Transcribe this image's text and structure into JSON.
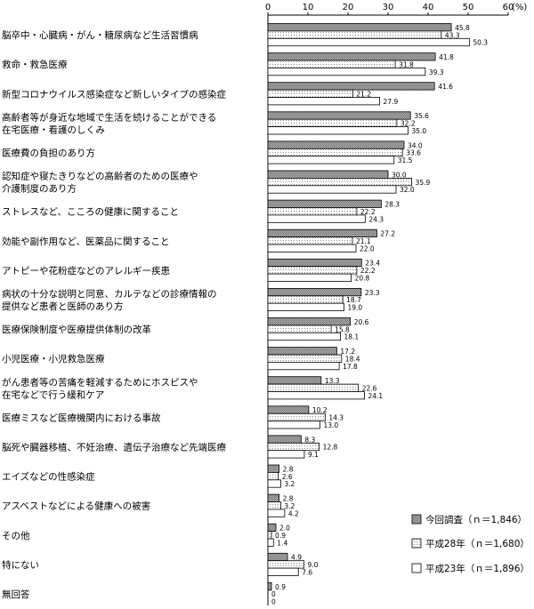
{
  "chart_data": {
    "type": "bar",
    "orientation": "horizontal",
    "unit": "(%)",
    "xlim": [
      0,
      60
    ],
    "ticks": [
      0,
      10,
      20,
      30,
      40,
      50,
      60
    ],
    "categories": [
      [
        "脳卒中・心臓病・がん・糖尿病など生活習慣病"
      ],
      [
        "救命・救急医療"
      ],
      [
        "新型コロナウイルス感染症など新しいタイプの感染症"
      ],
      [
        "高齢者等が身近な地域で生活を続けることができる",
        "在宅医療・看護のしくみ"
      ],
      [
        "医療費の負担のあり方"
      ],
      [
        "認知症や寝たきりなどの高齢者のための医療や",
        "介護制度のあり方"
      ],
      [
        "ストレスなど、こころの健康に関すること"
      ],
      [
        "効能や副作用など、医薬品に関すること"
      ],
      [
        "アトピーや花粉症などのアレルギー疾患"
      ],
      [
        "病状の十分な説明と同意、カルテなどの診療情報の",
        "提供など患者と医師のあり方"
      ],
      [
        "医療保険制度や医療提供体制の改革"
      ],
      [
        "小児医療・小児救急医療"
      ],
      [
        "がん患者等の苦痛を軽減するためにホスピスや",
        "在宅などで行う緩和ケア"
      ],
      [
        "医療ミスなど医療機関内における事故"
      ],
      [
        "脳死や臓器移植、不妊治療、遺伝子治療など先端医療"
      ],
      [
        "エイズなどの性感染症"
      ],
      [
        "アスベストなどによる健康への被害"
      ],
      [
        "その他"
      ],
      [
        "特にない"
      ],
      [
        "無回答"
      ]
    ],
    "series": [
      {
        "name": "今回調査（ｎ＝1,846）",
        "pattern": "dense",
        "values": [
          45.8,
          41.8,
          41.6,
          35.6,
          34.0,
          30.0,
          28.3,
          27.2,
          23.4,
          23.3,
          20.6,
          17.2,
          13.3,
          10.2,
          8.3,
          2.8,
          2.8,
          2.0,
          4.9,
          0.9
        ],
        "labels": [
          "45.8",
          "41.8",
          "41.6",
          "35.6",
          "34.0",
          "30.0",
          "28.3",
          "27.2",
          "23.4",
          "23.3",
          "20.6",
          "17.2",
          "13.3",
          "10.2",
          "8.3",
          "2.8",
          "2.8",
          "2.0",
          "4.9",
          "0.9"
        ]
      },
      {
        "name": "平成28年（ｎ＝1,680）",
        "pattern": "dots",
        "values": [
          43.3,
          31.8,
          21.2,
          32.2,
          33.6,
          35.9,
          22.2,
          21.1,
          22.2,
          18.7,
          15.8,
          18.4,
          22.6,
          14.3,
          12.8,
          2.6,
          3.2,
          0.9,
          9.0,
          0
        ],
        "labels": [
          "43.3",
          "31.8",
          "21.2",
          "32.2",
          "33.6",
          "35.9",
          "22.2",
          "21.1",
          "22.2",
          "18.7",
          "15.8",
          "18.4",
          "22.6",
          "14.3",
          "12.8",
          "2.6",
          "3.2",
          "0.9",
          "9.0",
          "0"
        ]
      },
      {
        "name": "平成23年（ｎ＝1,896）",
        "pattern": "white",
        "values": [
          50.3,
          39.3,
          27.9,
          35.0,
          31.5,
          32.0,
          24.3,
          22.0,
          20.8,
          19.0,
          18.1,
          17.8,
          24.1,
          13.0,
          9.1,
          3.2,
          4.2,
          1.4,
          7.6,
          0
        ],
        "labels": [
          "50.3",
          "39.3",
          "27.9",
          "35.0",
          "31.5",
          "32.0",
          "24.3",
          "22.0",
          "20.8",
          "19.0",
          "18.1",
          "17.8",
          "24.1",
          "13.0",
          "9.1",
          "3.2",
          "4.2",
          "1.4",
          "7.6",
          "0"
        ]
      }
    ],
    "legend_position": "bottom-right",
    "grid": false
  }
}
